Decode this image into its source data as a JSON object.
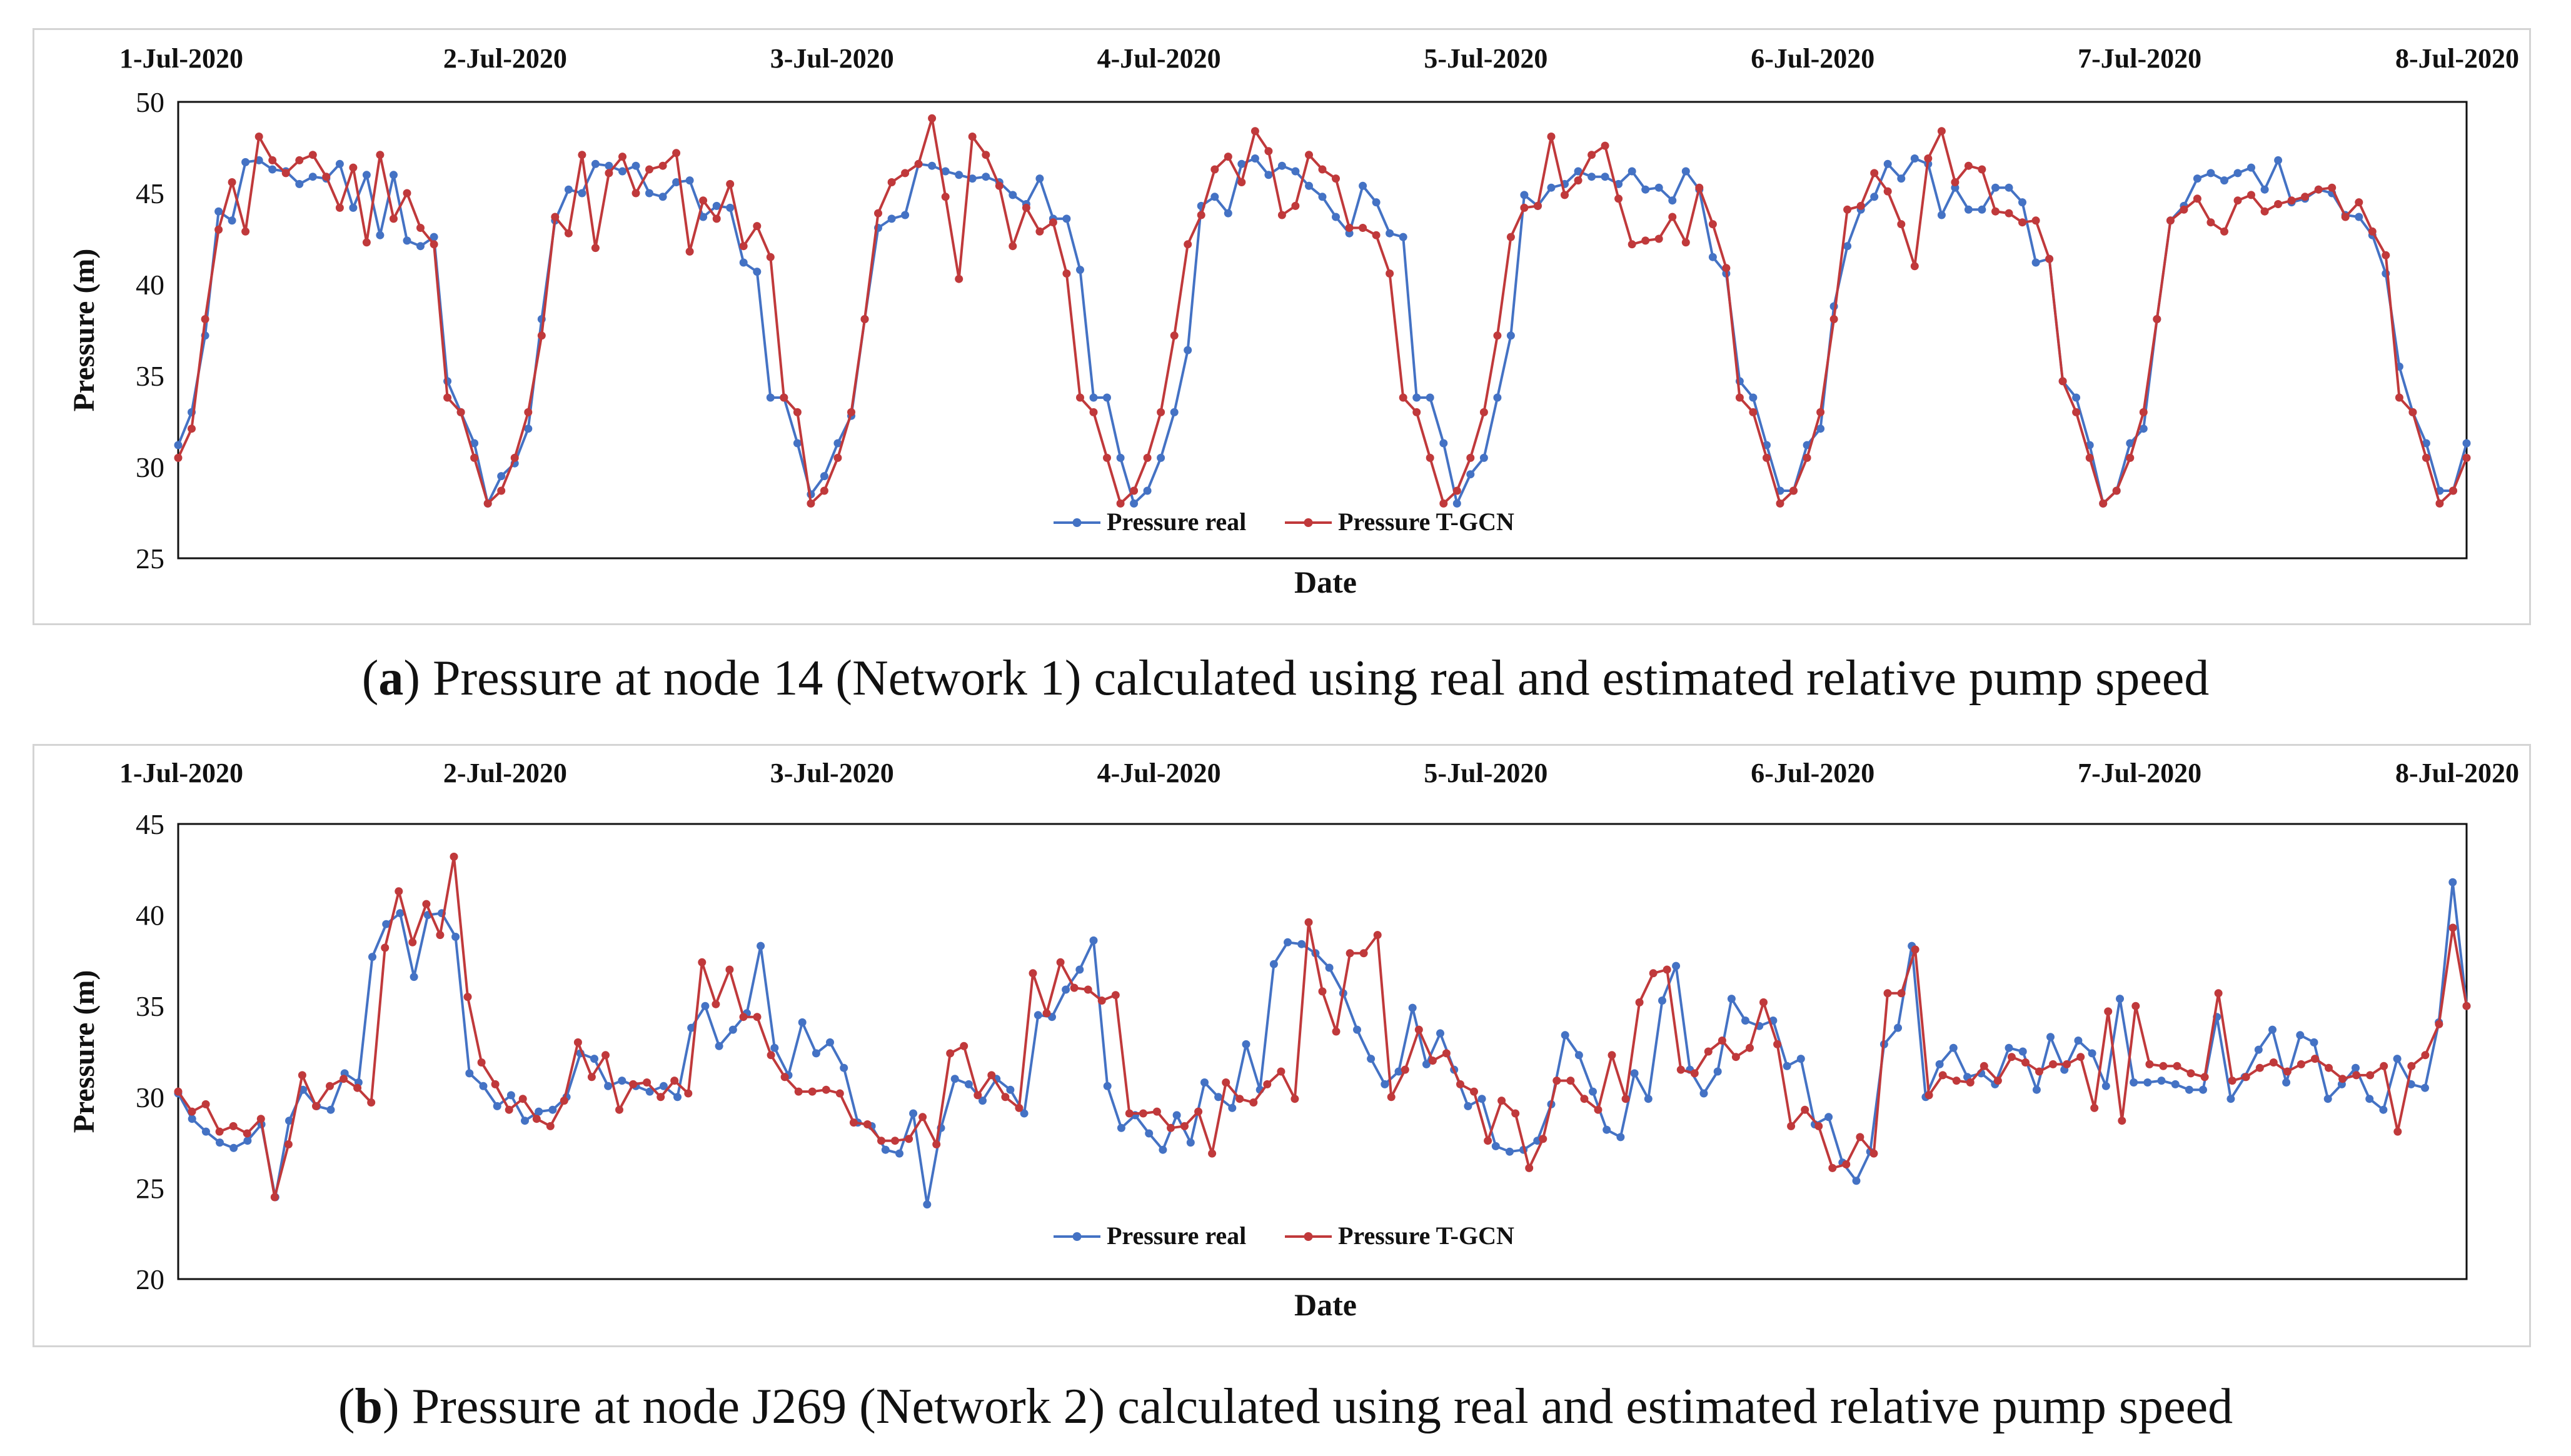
{
  "chart_data": [
    {
      "type": "line",
      "title": "Pressure at node 14 (Network 1) calculated using real and estimated relative pump speed",
      "caption_letter": "a",
      "caption_text": "Pressure at node 14 (Network 1) calculated using real and estimated relative pump speed",
      "xlabel": "Date",
      "ylabel": "Pressure (m)",
      "ylim": [
        25,
        50
      ],
      "yticks": [
        "25",
        "30",
        "35",
        "40",
        "45",
        "50"
      ],
      "date_labels": [
        "1-Jul-2020",
        "2-Jul-2020",
        "3-Jul-2020",
        "4-Jul-2020",
        "5-Jul-2020",
        "6-Jul-2020",
        "7-Jul-2020",
        "8-Jul-2020"
      ],
      "legend": {
        "position": "bottom-center"
      },
      "colors": {
        "real": "#4472C4",
        "tgcn": "#C0393B"
      },
      "series": [
        {
          "name": "Pressure real",
          "color": "#4472C4",
          "values": [
            31.2,
            33.0,
            37.2,
            44.0,
            43.5,
            46.7,
            46.8,
            46.3,
            46.2,
            45.5,
            45.9,
            45.8,
            46.6,
            44.2,
            46.0,
            42.7,
            46.0,
            42.4,
            42.1,
            42.6,
            34.7,
            33.0,
            31.3,
            28.0,
            29.5,
            30.2,
            32.1,
            38.1,
            43.5,
            45.2,
            45.0,
            46.6,
            46.5,
            46.2,
            46.5,
            45.0,
            44.8,
            45.6,
            45.7,
            43.7,
            44.3,
            44.2,
            41.2,
            40.7,
            33.8,
            33.8,
            31.3,
            28.5,
            29.5,
            31.3,
            32.8,
            38.1,
            43.1,
            43.6,
            43.8,
            46.6,
            46.5,
            46.2,
            46.0,
            45.8,
            45.9,
            45.6,
            44.9,
            44.4,
            45.8,
            43.6,
            43.6,
            40.8,
            33.8,
            33.8,
            30.5,
            28.0,
            28.7,
            30.5,
            33.0,
            36.4,
            44.3,
            44.8,
            43.9,
            46.6,
            46.9,
            46.0,
            46.5,
            46.2,
            45.4,
            44.8,
            43.7,
            42.8,
            45.4,
            44.5,
            42.8,
            42.6,
            33.8,
            33.8,
            31.3,
            28.0,
            29.6,
            30.5,
            33.8,
            37.2,
            44.9,
            44.3,
            45.3,
            45.5,
            46.2,
            45.9,
            45.9,
            45.5,
            46.2,
            45.2,
            45.3,
            44.6,
            46.2,
            45.2,
            41.5,
            40.6,
            34.7,
            33.8,
            31.2,
            28.7,
            28.7,
            31.2,
            32.1,
            38.8,
            42.1,
            44.1,
            44.8,
            46.6,
            45.8,
            46.9,
            46.6,
            43.8,
            45.3,
            44.1,
            44.1,
            45.3,
            45.3,
            44.5,
            41.2,
            41.4,
            34.7,
            33.8,
            31.2,
            28.0,
            28.7,
            31.3,
            32.1,
            38.1,
            43.5,
            44.3,
            45.8,
            46.1,
            45.7,
            46.1,
            46.4,
            45.2,
            46.8,
            44.5,
            44.7,
            45.2,
            45.0,
            43.8,
            43.7,
            42.7,
            40.6,
            35.5,
            33.0,
            31.3,
            28.7,
            28.7,
            31.3
          ],
          "markers": true
        },
        {
          "name": "Pressure T-GCN",
          "color": "#C0393B",
          "values": [
            30.5,
            32.1,
            38.1,
            43.0,
            45.6,
            42.9,
            48.1,
            46.8,
            46.1,
            46.8,
            47.1,
            45.9,
            44.2,
            46.4,
            42.3,
            47.1,
            43.6,
            45.0,
            43.1,
            42.2,
            33.8,
            33.0,
            30.5,
            28.0,
            28.7,
            30.5,
            33.0,
            37.2,
            43.7,
            42.8,
            47.1,
            42.0,
            46.1,
            47.0,
            45.0,
            46.3,
            46.5,
            47.2,
            41.8,
            44.6,
            43.6,
            45.5,
            42.1,
            43.2,
            41.5,
            33.8,
            33.0,
            28.0,
            28.7,
            30.5,
            33.0,
            38.1,
            43.9,
            45.6,
            46.1,
            46.6,
            49.1,
            44.8,
            40.3,
            48.1,
            47.1,
            45.4,
            42.1,
            44.2,
            42.9,
            43.4,
            40.6,
            33.8,
            33.0,
            30.5,
            28.0,
            28.7,
            30.5,
            33.0,
            37.2,
            42.2,
            43.8,
            46.3,
            47.0,
            45.6,
            48.4,
            47.3,
            43.8,
            44.3,
            47.1,
            46.3,
            45.8,
            43.1,
            43.1,
            42.7,
            40.6,
            33.8,
            33.0,
            30.5,
            28.0,
            28.7,
            30.5,
            33.0,
            37.2,
            42.6,
            44.2,
            44.3,
            48.1,
            44.9,
            45.7,
            47.1,
            47.6,
            44.7,
            42.2,
            42.4,
            42.5,
            43.7,
            42.3,
            45.3,
            43.3,
            40.9,
            33.8,
            33.0,
            30.5,
            28.0,
            28.7,
            30.5,
            33.0,
            38.1,
            44.1,
            44.3,
            46.1,
            45.1,
            43.3,
            41.0,
            46.9,
            48.4,
            45.6,
            46.5,
            46.3,
            44.0,
            43.9,
            43.4,
            43.5,
            41.4,
            34.7,
            33.0,
            30.5,
            28.0,
            28.7,
            30.5,
            33.0,
            38.1,
            43.5,
            44.1,
            44.7,
            43.4,
            42.9,
            44.6,
            44.9,
            44.0,
            44.4,
            44.6,
            44.8,
            45.2,
            45.3,
            43.7,
            44.5,
            42.9,
            41.6,
            33.8,
            33.0,
            30.5,
            28.0,
            28.7,
            30.5
          ],
          "markers": true
        }
      ]
    },
    {
      "type": "line",
      "title": "Pressure at node J269 (Network 2) calculated using real and estimated relative pump speed",
      "caption_letter": "b",
      "caption_text": "Pressure at node J269 (Network 2) calculated using real and estimated relative pump speed",
      "xlabel": "Date",
      "ylabel": "Pressure (m)",
      "ylim": [
        20,
        45
      ],
      "yticks": [
        "20",
        "25",
        "30",
        "35",
        "40",
        "45"
      ],
      "date_labels": [
        "1-Jul-2020",
        "2-Jul-2020",
        "3-Jul-2020",
        "4-Jul-2020",
        "5-Jul-2020",
        "6-Jul-2020",
        "7-Jul-2020",
        "8-Jul-2020"
      ],
      "legend": {
        "position": "bottom-center"
      },
      "colors": {
        "real": "#4472C4",
        "tgcn": "#C0393B"
      },
      "series": [
        {
          "name": "Pressure real",
          "color": "#4472C4",
          "values": [
            30.2,
            28.8,
            28.1,
            27.5,
            27.2,
            27.6,
            28.5,
            24.5,
            28.7,
            30.4,
            29.5,
            29.3,
            31.3,
            30.8,
            37.7,
            39.5,
            40.1,
            36.6,
            40.0,
            40.1,
            38.8,
            31.3,
            30.6,
            29.5,
            30.1,
            28.7,
            29.2,
            29.3,
            30.0,
            32.4,
            32.1,
            30.6,
            30.9,
            30.6,
            30.3,
            30.6,
            30.0,
            33.8,
            35.0,
            32.8,
            33.7,
            34.6,
            38.3,
            32.7,
            31.2,
            34.1,
            32.4,
            33.0,
            31.6,
            28.6,
            28.4,
            27.1,
            26.9,
            29.1,
            24.1,
            28.3,
            31.0,
            30.7,
            29.8,
            31.0,
            30.4,
            29.1,
            34.5,
            34.4,
            35.9,
            37.0,
            38.6,
            30.6,
            28.3,
            29.0,
            28.0,
            27.1,
            29.0,
            27.5,
            30.8,
            30.0,
            29.4,
            32.9,
            30.4,
            37.3,
            38.5,
            38.4,
            37.9,
            37.1,
            35.7,
            33.7,
            32.1,
            30.7,
            31.4,
            34.9,
            31.8,
            33.5,
            31.5,
            29.5,
            29.9,
            27.3,
            27.0,
            27.1,
            27.6,
            29.6,
            33.4,
            32.3,
            30.3,
            28.2,
            27.8,
            31.3,
            29.9,
            35.3,
            37.2,
            31.5,
            30.2,
            31.4,
            35.4,
            34.2,
            33.9,
            34.2,
            31.7,
            32.1,
            28.5,
            28.9,
            26.4,
            25.4,
            27.0,
            32.9,
            33.8,
            38.3,
            30.0,
            31.8,
            32.7,
            31.1,
            31.3,
            30.7,
            32.7,
            32.5,
            30.4,
            33.3,
            31.5,
            33.1,
            32.4,
            30.6,
            35.4,
            30.8,
            30.8,
            30.9,
            30.7,
            30.4,
            30.4,
            34.4,
            29.9,
            31.1,
            32.6,
            33.7,
            30.8,
            33.4,
            33.0,
            29.9,
            30.7,
            31.6,
            29.9,
            29.3,
            32.1,
            30.7,
            30.5,
            34.1,
            41.8,
            35.0
          ],
          "markers": true
        },
        {
          "name": "Pressure T-GCN",
          "color": "#C0393B",
          "values": [
            30.3,
            29.2,
            29.6,
            28.1,
            28.4,
            28.0,
            28.8,
            24.5,
            27.4,
            31.2,
            29.5,
            30.6,
            31.0,
            30.5,
            29.7,
            38.2,
            41.3,
            38.5,
            40.6,
            38.9,
            43.2,
            35.5,
            31.9,
            30.7,
            29.3,
            29.9,
            28.8,
            28.4,
            29.8,
            33.0,
            31.1,
            32.3,
            29.3,
            30.7,
            30.8,
            30.0,
            30.9,
            30.2,
            37.4,
            35.1,
            37.0,
            34.4,
            34.4,
            32.3,
            31.1,
            30.3,
            30.3,
            30.4,
            30.2,
            28.6,
            28.5,
            27.6,
            27.6,
            27.7,
            28.9,
            27.4,
            32.4,
            32.8,
            30.1,
            31.2,
            30.0,
            29.4,
            36.8,
            34.6,
            37.4,
            36.0,
            35.9,
            35.3,
            35.6,
            29.1,
            29.1,
            29.2,
            28.3,
            28.4,
            29.2,
            26.9,
            30.8,
            29.9,
            29.7,
            30.7,
            31.4,
            29.9,
            39.6,
            35.8,
            33.6,
            37.9,
            37.9,
            38.9,
            30.0,
            31.5,
            33.7,
            32.0,
            32.4,
            30.7,
            30.3,
            27.6,
            29.8,
            29.1,
            26.1,
            27.7,
            30.9,
            30.9,
            29.9,
            29.3,
            32.3,
            29.9,
            35.2,
            36.8,
            37.0,
            31.5,
            31.3,
            32.5,
            33.1,
            32.2,
            32.7,
            35.2,
            32.9,
            28.4,
            29.3,
            28.4,
            26.1,
            26.3,
            27.8,
            26.9,
            35.7,
            35.7,
            38.1,
            30.1,
            31.2,
            30.9,
            30.8,
            31.7,
            30.9,
            32.2,
            31.9,
            31.4,
            31.8,
            31.8,
            32.2,
            29.4,
            34.7,
            28.7,
            35.0,
            31.8,
            31.7,
            31.7,
            31.3,
            31.1,
            35.7,
            30.9,
            31.1,
            31.6,
            31.9,
            31.4,
            31.8,
            32.1,
            31.6,
            31.0,
            31.2,
            31.2,
            31.7,
            28.1,
            31.7,
            32.3,
            34.0,
            39.3,
            35.0
          ],
          "markers": true
        }
      ]
    }
  ]
}
